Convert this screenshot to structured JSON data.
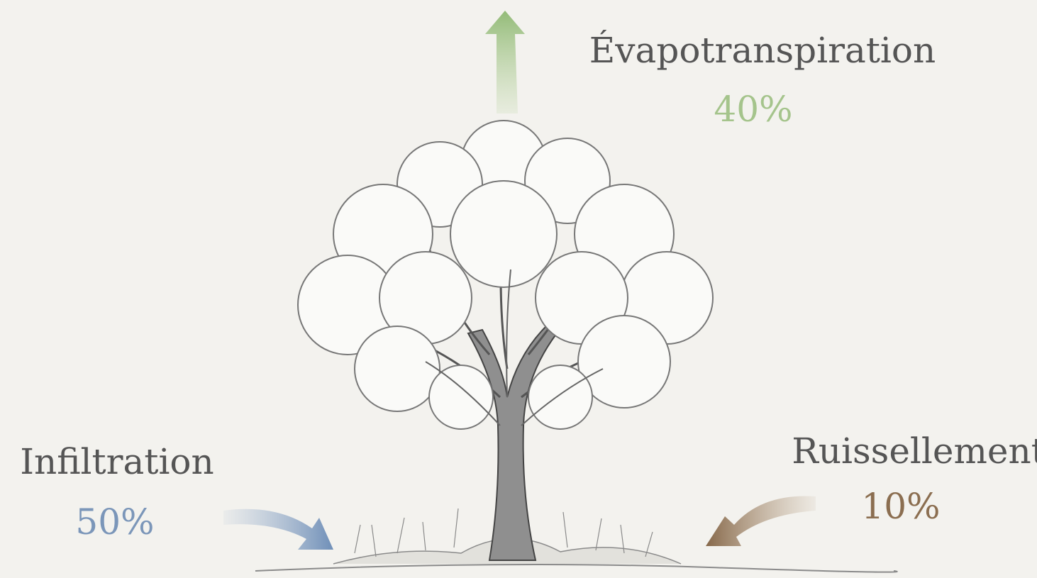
{
  "flows": [
    {
      "label": "Évapotranspiration",
      "value": "40%"
    },
    {
      "label": "Infiltration",
      "value": "50%"
    },
    {
      "label": "Ruissellement",
      "value": "10%"
    }
  ]
}
